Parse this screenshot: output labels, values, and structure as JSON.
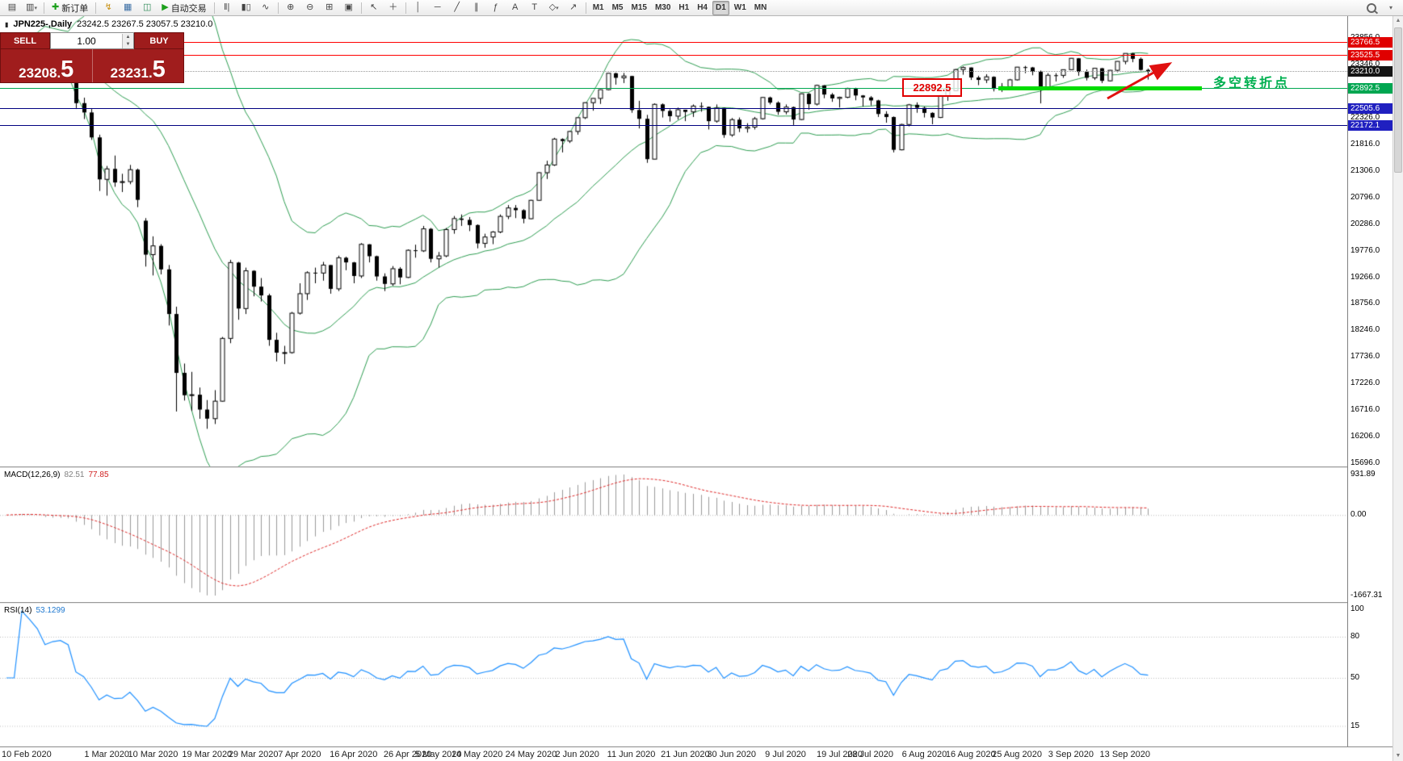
{
  "colors": {
    "up_candle": "#ffffff",
    "down_candle": "#000000",
    "bollinger": "#2E9E52",
    "macd_hist": "#9a9a9a",
    "macd_signal": "#e02828",
    "rsi_line": "#1e90ff",
    "panel_red": "#a01d1d",
    "annotation_green": "#00dd00",
    "annotation_red": "#e01010",
    "level_red": "#ff0000",
    "level_green": "#00a651",
    "level_blue": "#000080"
  },
  "toolbar": {
    "new_order_label": "新订单",
    "autotrading_label": "自动交易",
    "timeframes": [
      "M1",
      "M5",
      "M15",
      "M30",
      "H1",
      "H4",
      "D1",
      "W1",
      "MN"
    ],
    "active_timeframe": "D1"
  },
  "chart": {
    "symbol_period": "JPN225-,Daily",
    "ohlc": "23242.5 23267.5 23057.5 23210.0"
  },
  "trade_panel": {
    "sell_label": "SELL",
    "buy_label": "BUY",
    "volume": "1.00",
    "sell_price": "23208.5",
    "sell_price_main": "23208.",
    "sell_price_pips": "5",
    "buy_price": "23231.5",
    "buy_price_main": "23231.",
    "buy_price_pips": "5"
  },
  "panels": {
    "macd": {
      "name": "MACD(12,26,9)",
      "main_value": "82.51",
      "signal_value": "77.85",
      "axis": [
        "931.89",
        "0.00",
        "-1667.31"
      ]
    },
    "rsi": {
      "name": "RSI(14)",
      "value": "53.1299",
      "axis_labels": [
        "100",
        "80",
        "50",
        "15"
      ],
      "axis_values": [
        100,
        80,
        50,
        15
      ],
      "levels": [
        80,
        50,
        15
      ]
    }
  },
  "annotations": {
    "price_level_box": "22892.5",
    "turning_point": "多空转折点"
  },
  "price_axis": {
    "ticks": [
      {
        "label": "23856.0",
        "price": 23856
      },
      {
        "label": "23346.0",
        "price": 23346
      },
      {
        "label": "22326.0",
        "price": 22326
      },
      {
        "label": "21816.0",
        "price": 21816
      },
      {
        "label": "21306.0",
        "price": 21306
      },
      {
        "label": "20796.0",
        "price": 20796
      },
      {
        "label": "20286.0",
        "price": 20286
      },
      {
        "label": "19776.0",
        "price": 19776
      },
      {
        "label": "19266.0",
        "price": 19266
      },
      {
        "label": "18756.0",
        "price": 18756
      },
      {
        "label": "18246.0",
        "price": 18246
      },
      {
        "label": "17736.0",
        "price": 17736
      },
      {
        "label": "17226.0",
        "price": 17226
      },
      {
        "label": "16716.0",
        "price": 16716
      },
      {
        "label": "16206.0",
        "price": 16206
      },
      {
        "label": "15696.0",
        "price": 15696
      }
    ],
    "badges": [
      {
        "label": "23766.5",
        "price": 23766.5,
        "bg": "#e00000"
      },
      {
        "label": "23525.5",
        "price": 23525.5,
        "bg": "#e00000"
      },
      {
        "label": "23210.0",
        "price": 23210.0,
        "bg": "#151515"
      },
      {
        "label": "22892.5",
        "price": 22892.5,
        "bg": "#00a651"
      },
      {
        "label": "22505.6",
        "price": 22505.6,
        "bg": "#2020c0"
      },
      {
        "label": "22172.1",
        "price": 22172.1,
        "bg": "#2020c0"
      }
    ]
  },
  "hlines": [
    {
      "price": 23766.5,
      "color": "#ff0000",
      "style": "solid"
    },
    {
      "price": 23525.5,
      "color": "#ff0000",
      "style": "solid"
    },
    {
      "price": 23210.0,
      "color": "#999999",
      "style": "dotted"
    },
    {
      "price": 22892.5,
      "color": "#00a651",
      "style": "solid"
    },
    {
      "price": 22505.6,
      "color": "#000080",
      "style": "solid"
    },
    {
      "price": 22172.1,
      "color": "#000080",
      "style": "solid"
    }
  ],
  "chart_data": {
    "type": "candlestick",
    "symbol": "JPN225",
    "timeframe": "Daily",
    "title": "JPN225-,Daily 23242.5 23267.5 23057.5 23210.0",
    "ylim": [
      15634,
      24243
    ],
    "bollinger": {
      "period": 20,
      "deviation": 2
    },
    "date_labels": [
      {
        "label": "10 Feb 2020",
        "index": 0
      },
      {
        "label": "1 Mar 2020",
        "index": 13
      },
      {
        "label": "10 Mar 2020",
        "index": 19
      },
      {
        "label": "19 Mar 2020",
        "index": 26
      },
      {
        "label": "29 Mar 2020",
        "index": 32
      },
      {
        "label": "7 Apr 2020",
        "index": 38
      },
      {
        "label": "16 Apr 2020",
        "index": 45
      },
      {
        "label": "26 Apr 2020",
        "index": 52
      },
      {
        "label": "5 May 2020",
        "index": 56
      },
      {
        "label": "14 May 2020",
        "index": 61
      },
      {
        "label": "24 May 2020",
        "index": 68
      },
      {
        "label": "2 Jun 2020",
        "index": 74
      },
      {
        "label": "11 Jun 2020",
        "index": 81
      },
      {
        "label": "21 Jun 2020",
        "index": 88
      },
      {
        "label": "30 Jun 2020",
        "index": 94
      },
      {
        "label": "9 Jul 2020",
        "index": 101
      },
      {
        "label": "19 Jul 2020",
        "index": 108
      },
      {
        "label": "28 Jul 2020",
        "index": 112
      },
      {
        "label": "6 Aug 2020",
        "index": 119
      },
      {
        "label": "16 Aug 2020",
        "index": 125
      },
      {
        "label": "25 Aug 2020",
        "index": 131
      },
      {
        "label": "3 Sep 2020",
        "index": 138
      },
      {
        "label": "13 Sep 2020",
        "index": 145
      }
    ],
    "candles": [
      [
        23600,
        23750,
        23520,
        23686
      ],
      [
        23686,
        23900,
        23640,
        23861
      ],
      [
        23861,
        23930,
        23750,
        23828
      ],
      [
        23828,
        23870,
        23640,
        23688
      ],
      [
        23688,
        23720,
        23480,
        23523
      ],
      [
        23523,
        23550,
        23120,
        23193
      ],
      [
        23193,
        23450,
        23180,
        23401
      ],
      [
        23401,
        23540,
        23330,
        23479
      ],
      [
        23479,
        23500,
        23290,
        23387
      ],
      [
        23000,
        23050,
        22500,
        22605
      ],
      [
        22605,
        22710,
        22300,
        22426
      ],
      [
        22426,
        22500,
        21900,
        21948
      ],
      [
        21948,
        22000,
        20920,
        21143
      ],
      [
        21143,
        21400,
        20830,
        21344
      ],
      [
        21344,
        21600,
        21000,
        21083
      ],
      [
        21083,
        21250,
        20900,
        21100
      ],
      [
        21100,
        21420,
        21050,
        21329
      ],
      [
        21329,
        21350,
        20610,
        20750
      ],
      [
        20350,
        20400,
        19470,
        19699
      ],
      [
        19699,
        20050,
        19300,
        19867
      ],
      [
        19867,
        19900,
        19320,
        19416
      ],
      [
        19416,
        19500,
        18340,
        18560
      ],
      [
        18560,
        18700,
        16690,
        17431
      ],
      [
        17431,
        17610,
        16900,
        17002
      ],
      [
        17002,
        17450,
        16700,
        17012
      ],
      [
        17012,
        17150,
        16550,
        16727
      ],
      [
        16727,
        16910,
        16358,
        16553
      ],
      [
        16553,
        17100,
        16450,
        16888
      ],
      [
        16888,
        18120,
        16880,
        18092
      ],
      [
        18092,
        19600,
        18000,
        19547
      ],
      [
        19547,
        19560,
        18450,
        18665
      ],
      [
        18665,
        19450,
        18560,
        19389
      ],
      [
        19389,
        19400,
        18900,
        19085
      ],
      [
        19085,
        19250,
        18800,
        18917
      ],
      [
        18917,
        18950,
        17950,
        18065
      ],
      [
        18065,
        18200,
        17650,
        17819
      ],
      [
        17819,
        17950,
        17600,
        17820
      ],
      [
        17820,
        18600,
        17800,
        18576
      ],
      [
        18576,
        19150,
        18550,
        18950
      ],
      [
        18950,
        19380,
        18830,
        19353
      ],
      [
        19353,
        19450,
        19150,
        19346
      ],
      [
        19346,
        19560,
        19200,
        19499
      ],
      [
        19499,
        19500,
        18950,
        19043
      ],
      [
        19043,
        19680,
        19000,
        19639
      ],
      [
        19639,
        19660,
        19400,
        19550
      ],
      [
        19550,
        19560,
        19150,
        19290
      ],
      [
        19290,
        19920,
        19250,
        19897
      ],
      [
        19897,
        19900,
        19550,
        19669
      ],
      [
        19669,
        19680,
        19200,
        19281
      ],
      [
        19281,
        19340,
        19000,
        19138
      ],
      [
        19138,
        19480,
        19100,
        19429
      ],
      [
        19429,
        19460,
        19130,
        19262
      ],
      [
        19262,
        19800,
        19250,
        19783
      ],
      [
        19783,
        19890,
        19640,
        19771
      ],
      [
        19771,
        20250,
        19750,
        20194
      ],
      [
        20194,
        20210,
        19550,
        19619
      ],
      [
        19619,
        19750,
        19450,
        19675
      ],
      [
        19675,
        20210,
        19650,
        20180
      ],
      [
        20180,
        20440,
        20100,
        20391
      ],
      [
        20391,
        20470,
        20250,
        20366
      ],
      [
        20366,
        20420,
        20150,
        20267
      ],
      [
        20267,
        20280,
        19820,
        19915
      ],
      [
        19915,
        20100,
        19830,
        20037
      ],
      [
        20037,
        20150,
        19900,
        20134
      ],
      [
        20134,
        20470,
        20110,
        20433
      ],
      [
        20433,
        20650,
        20380,
        20595
      ],
      [
        20595,
        20650,
        20400,
        20552
      ],
      [
        20552,
        20570,
        20300,
        20388
      ],
      [
        20388,
        20750,
        20380,
        20741
      ],
      [
        20741,
        21280,
        20730,
        21271
      ],
      [
        21271,
        21500,
        21150,
        21419
      ],
      [
        21419,
        21940,
        21400,
        21916
      ],
      [
        21916,
        21930,
        21660,
        21878
      ],
      [
        21878,
        22070,
        21840,
        22062
      ],
      [
        22062,
        22330,
        22000,
        22326
      ],
      [
        22326,
        22620,
        22300,
        22614
      ],
      [
        22614,
        22700,
        22460,
        22696
      ],
      [
        22696,
        22870,
        22590,
        22864
      ],
      [
        22864,
        23180,
        22850,
        23178
      ],
      [
        23178,
        23190,
        22960,
        23091
      ],
      [
        23091,
        23185,
        22990,
        23125
      ],
      [
        23125,
        23130,
        22420,
        22473
      ],
      [
        22473,
        22650,
        22120,
        22305
      ],
      [
        22305,
        22380,
        21460,
        21531
      ],
      [
        21531,
        22600,
        21530,
        22582
      ],
      [
        22582,
        22600,
        22330,
        22456
      ],
      [
        22456,
        22490,
        22250,
        22355
      ],
      [
        22355,
        22520,
        22290,
        22479
      ],
      [
        22479,
        22480,
        22260,
        22437
      ],
      [
        22437,
        22580,
        22340,
        22549
      ],
      [
        22549,
        22620,
        22440,
        22534
      ],
      [
        22534,
        22540,
        22100,
        22260
      ],
      [
        22260,
        22580,
        22230,
        22512
      ],
      [
        22512,
        22520,
        21940,
        21995
      ],
      [
        21995,
        22320,
        21960,
        22288
      ],
      [
        22288,
        22330,
        22050,
        22122
      ],
      [
        22122,
        22220,
        22040,
        22146
      ],
      [
        22146,
        22340,
        22100,
        22306
      ],
      [
        22306,
        22720,
        22290,
        22714
      ],
      [
        22714,
        22730,
        22580,
        22615
      ],
      [
        22615,
        22640,
        22380,
        22439
      ],
      [
        22439,
        22580,
        22390,
        22529
      ],
      [
        22529,
        22540,
        22180,
        22291
      ],
      [
        22291,
        22790,
        22280,
        22785
      ],
      [
        22785,
        22800,
        22480,
        22587
      ],
      [
        22587,
        22960,
        22560,
        22946
      ],
      [
        22946,
        22950,
        22700,
        22770
      ],
      [
        22770,
        22800,
        22630,
        22696
      ],
      [
        22696,
        22730,
        22520,
        22717
      ],
      [
        22717,
        22900,
        22700,
        22884
      ],
      [
        22884,
        22900,
        22660,
        22752
      ],
      [
        22752,
        22760,
        22540,
        22715
      ],
      [
        22715,
        22740,
        22560,
        22657
      ],
      [
        22657,
        22670,
        22340,
        22397
      ],
      [
        22397,
        22450,
        22230,
        22339
      ],
      [
        22339,
        22350,
        21660,
        21710
      ],
      [
        21710,
        22210,
        21700,
        22195
      ],
      [
        22195,
        22590,
        22160,
        22573
      ],
      [
        22573,
        22620,
        22420,
        22515
      ],
      [
        22515,
        22540,
        22330,
        22418
      ],
      [
        22418,
        22430,
        22200,
        22330
      ],
      [
        22330,
        22760,
        22320,
        22750
      ],
      [
        22750,
        22860,
        22650,
        22844
      ],
      [
        22844,
        23260,
        22840,
        23249
      ],
      [
        23249,
        23310,
        23150,
        23289
      ],
      [
        23289,
        23290,
        23050,
        23097
      ],
      [
        23097,
        23130,
        22950,
        23051
      ],
      [
        23051,
        23160,
        22990,
        23110
      ],
      [
        23110,
        23120,
        22830,
        22880
      ],
      [
        22880,
        22990,
        22820,
        22920
      ],
      [
        22920,
        23070,
        22880,
        23052
      ],
      [
        23052,
        23300,
        23040,
        23296
      ],
      [
        23296,
        23320,
        23180,
        23290
      ],
      [
        23290,
        23300,
        23140,
        23209
      ],
      [
        23209,
        23230,
        22600,
        22882
      ],
      [
        22882,
        23180,
        22860,
        23140
      ],
      [
        23140,
        23180,
        23020,
        23138
      ],
      [
        23138,
        23250,
        23090,
        23247
      ],
      [
        23247,
        23470,
        23240,
        23465
      ],
      [
        23465,
        23470,
        23130,
        23205
      ],
      [
        23205,
        23250,
        23040,
        23090
      ],
      [
        23090,
        23280,
        23050,
        23274
      ],
      [
        23274,
        23280,
        22990,
        23033
      ],
      [
        23033,
        23240,
        23020,
        23235
      ],
      [
        23235,
        23410,
        23200,
        23406
      ],
      [
        23406,
        23560,
        23350,
        23559
      ],
      [
        23559,
        23570,
        23390,
        23455
      ],
      [
        23455,
        23480,
        23230,
        23242
      ],
      [
        23242.5,
        23267.5,
        23057.5,
        23210
      ]
    ]
  }
}
